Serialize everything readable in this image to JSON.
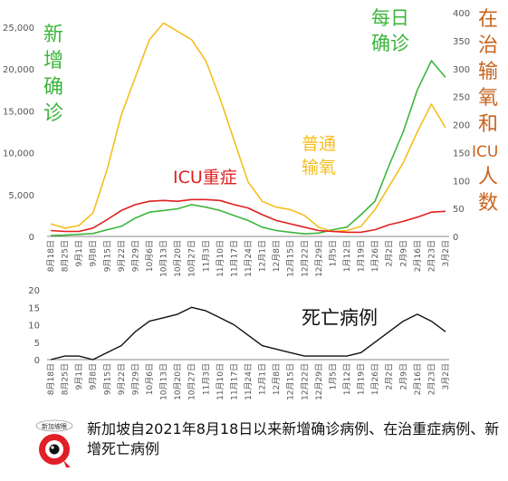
{
  "caption": "新加坡自2021年8月18日以来新增确诊病例、在治重症病例、新增死亡病例",
  "logo_text": "新加坡眼",
  "colors": {
    "cases": "#3cb63c",
    "oxygen": "#f5be1e",
    "icu": "#e02020",
    "deaths": "#111111",
    "oxygen_label": "#c8641e",
    "axis": "#888888"
  },
  "chart_data": [
    {
      "type": "line",
      "title": "",
      "x_labels": [
        "8月18日",
        "8月25日",
        "9月1日",
        "9月8日",
        "9月15日",
        "9月22日",
        "9月29日",
        "10月6日",
        "10月13日",
        "10月20日",
        "10月27日",
        "11月3日",
        "11月10日",
        "11月17日",
        "11月24日",
        "12月1日",
        "12月8日",
        "12月15日",
        "12月22日",
        "12月29日",
        "1月5日",
        "1月12日",
        "1月19日",
        "1月26日",
        "2月2日",
        "2月9日",
        "2月16日",
        "2月23日",
        "3月2日"
      ],
      "y_left_ticks": [
        "0",
        "5,000",
        "10,000",
        "15,000",
        "20,000",
        "25,000"
      ],
      "y_right_ticks": [
        "0",
        "50",
        "100",
        "150",
        "200",
        "250",
        "300",
        "350",
        "400"
      ],
      "ylim_left": [
        0,
        25000
      ],
      "ylim_right": [
        0,
        400
      ],
      "annotations": {
        "cases": "新增确诊",
        "oxygen": "在治输氧和ICU人数",
        "icu": "ICU重症",
        "oxygen_inline": "普通输氧",
        "cases_inline": "每日确诊"
      },
      "series": [
        {
          "name": "新增确诊",
          "color": "#3cb63c",
          "values": [
            100,
            150,
            250,
            350,
            800,
            1200,
            2200,
            2900,
            3100,
            3300,
            3800,
            3500,
            3100,
            2500,
            1900,
            1100,
            700,
            500,
            300,
            400,
            800,
            1100,
            2600,
            4200,
            8500,
            12500,
            17500,
            21000,
            19000
          ]
        },
        {
          "name": "普通输氧",
          "color": "#f5be1e",
          "values": [
            1500,
            1000,
            1300,
            2800,
            8000,
            14500,
            19000,
            23500,
            25500,
            24500,
            23500,
            21000,
            16500,
            11500,
            6500,
            4200,
            3500,
            3200,
            2500,
            1100,
            600,
            700,
            1200,
            3200,
            6000,
            8800,
            12500,
            15800,
            13000
          ]
        },
        {
          "name": "ICU重症",
          "color": "#e02020",
          "values": [
            700,
            600,
            600,
            1000,
            2000,
            3100,
            3800,
            4200,
            4300,
            4200,
            4400,
            4400,
            4300,
            3800,
            3400,
            2600,
            1900,
            1500,
            1100,
            700,
            600,
            500,
            500,
            800,
            1400,
            1800,
            2300,
            2900,
            3000
          ]
        }
      ]
    },
    {
      "type": "line",
      "title": "死亡病例",
      "x_labels": [
        "8月18日",
        "8月25日",
        "9月1日",
        "9月8日",
        "9月15日",
        "9月22日",
        "9月29日",
        "10月6日",
        "10月13日",
        "10月20日",
        "10月27日",
        "11月3日",
        "11月10日",
        "11月17日",
        "11月24日",
        "12月1日",
        "12月8日",
        "12月15日",
        "12月22日",
        "12月29日",
        "1月5日",
        "1月12日",
        "1月19日",
        "1月26日",
        "2月2日",
        "2月9日",
        "2月16日",
        "2月23日",
        "3月2日"
      ],
      "y_ticks": [
        "0",
        "5",
        "10",
        "15",
        "20"
      ],
      "ylim": [
        0,
        20
      ],
      "series": [
        {
          "name": "死亡病例",
          "color": "#111111",
          "values": [
            0,
            1,
            1,
            0,
            2,
            4,
            8,
            11,
            12,
            13,
            15,
            14,
            12,
            10,
            7,
            4,
            3,
            2,
            1,
            1,
            1,
            1,
            2,
            5,
            8,
            11,
            13,
            11,
            8
          ]
        }
      ]
    }
  ]
}
